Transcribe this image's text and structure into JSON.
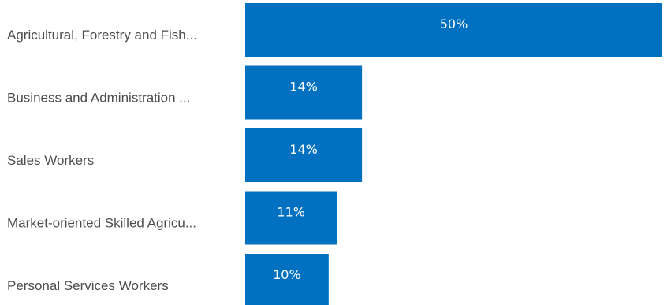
{
  "chart_data": {
    "type": "bar",
    "orientation": "horizontal",
    "categories": [
      "Agricultural, Forestry and Fish...",
      "Business and Administration ...",
      "Sales Workers",
      "Market-oriented Skilled Agricu...",
      "Personal Services Workers"
    ],
    "values": [
      50,
      14,
      14,
      11,
      10
    ],
    "value_labels": [
      "50%",
      "14%",
      "14%",
      "11%",
      "10%"
    ],
    "unit": "%",
    "xlim": [
      0,
      50
    ],
    "grid": false,
    "legend": "none",
    "bar_color": "#0070c0"
  }
}
